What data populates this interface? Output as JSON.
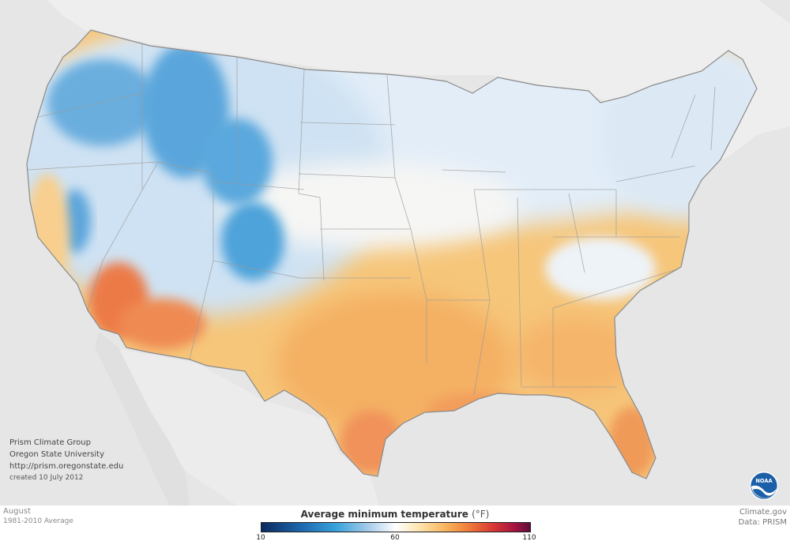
{
  "credits": {
    "line1": "Prism Climate Group",
    "line2": "Oregon State University",
    "line3": "http://prism.oregonstate.edu",
    "line4": "created 10 July 2012"
  },
  "footer": {
    "month": "August",
    "period": "1981-2010 Average",
    "source_site": "Climate.gov",
    "data_source": "Data: PRISM"
  },
  "legend": {
    "title": "Average minimum temperature",
    "unit": "(°F)",
    "ticks": [
      "10",
      "60",
      "110"
    ],
    "colors": [
      "#0a2a5e",
      "#1f6db3",
      "#3aa3dc",
      "#a9cde9",
      "#ffffff",
      "#fde7b5",
      "#f8b860",
      "#ef7d3a",
      "#d93a35",
      "#a8143f",
      "#5e0c3a"
    ]
  },
  "logo": {
    "text": "NOAA"
  }
}
